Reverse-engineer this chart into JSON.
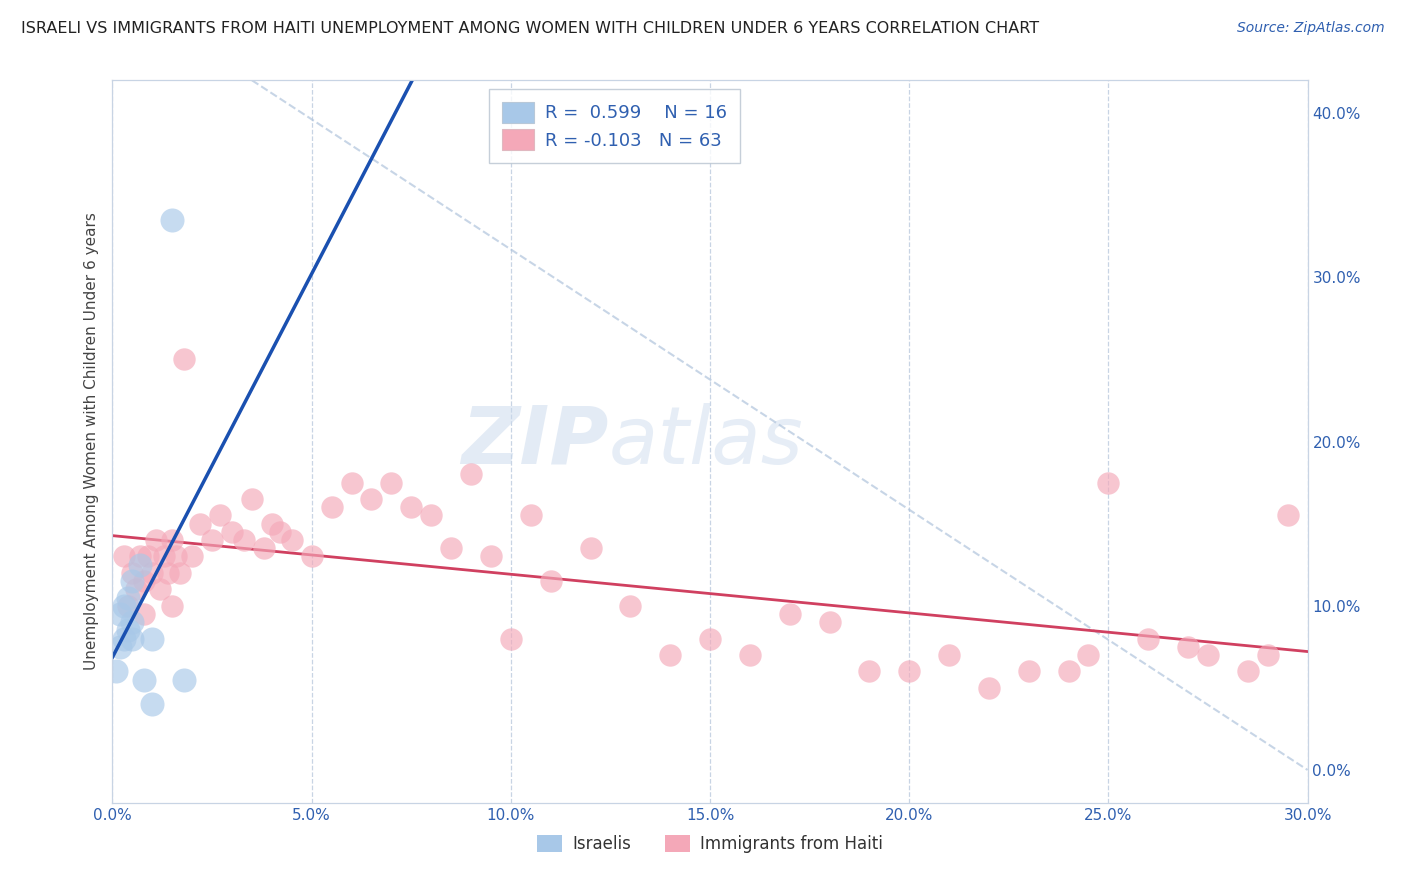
{
  "title": "ISRAELI VS IMMIGRANTS FROM HAITI UNEMPLOYMENT AMONG WOMEN WITH CHILDREN UNDER 6 YEARS CORRELATION CHART",
  "source": "Source: ZipAtlas.com",
  "ylabel": "Unemployment Among Women with Children Under 6 years",
  "label_israelis": "Israelis",
  "label_haiti": "Immigrants from Haiti",
  "xmin": 0.0,
  "xmax": 0.3,
  "ymin": -0.02,
  "ymax": 0.42,
  "r_israeli": 0.599,
  "n_israeli": 16,
  "r_haiti": -0.103,
  "n_haiti": 63,
  "color_israeli": "#a8c8e8",
  "color_haiti": "#f4a8b8",
  "color_line_israeli": "#1a50b0",
  "color_line_haiti": "#d04060",
  "color_accent": "#3060b0",
  "background_color": "#ffffff",
  "grid_color": "#c8d4e4",
  "israeli_x": [
    0.001,
    0.002,
    0.002,
    0.003,
    0.003,
    0.004,
    0.004,
    0.005,
    0.005,
    0.005,
    0.007,
    0.008,
    0.01,
    0.01,
    0.015,
    0.018
  ],
  "israeli_y": [
    0.06,
    0.075,
    0.095,
    0.08,
    0.1,
    0.085,
    0.105,
    0.08,
    0.09,
    0.115,
    0.125,
    0.055,
    0.04,
    0.08,
    0.335,
    0.055
  ],
  "haiti_x": [
    0.003,
    0.004,
    0.005,
    0.006,
    0.007,
    0.008,
    0.008,
    0.009,
    0.01,
    0.011,
    0.012,
    0.013,
    0.014,
    0.015,
    0.015,
    0.016,
    0.017,
    0.018,
    0.02,
    0.022,
    0.025,
    0.027,
    0.03,
    0.033,
    0.035,
    0.038,
    0.04,
    0.042,
    0.045,
    0.05,
    0.055,
    0.06,
    0.065,
    0.07,
    0.075,
    0.08,
    0.085,
    0.09,
    0.095,
    0.1,
    0.105,
    0.11,
    0.12,
    0.13,
    0.14,
    0.15,
    0.16,
    0.17,
    0.18,
    0.19,
    0.2,
    0.21,
    0.22,
    0.23,
    0.24,
    0.245,
    0.25,
    0.26,
    0.27,
    0.275,
    0.285,
    0.29,
    0.295
  ],
  "haiti_y": [
    0.13,
    0.1,
    0.12,
    0.11,
    0.13,
    0.095,
    0.115,
    0.13,
    0.12,
    0.14,
    0.11,
    0.13,
    0.12,
    0.1,
    0.14,
    0.13,
    0.12,
    0.25,
    0.13,
    0.15,
    0.14,
    0.155,
    0.145,
    0.14,
    0.165,
    0.135,
    0.15,
    0.145,
    0.14,
    0.13,
    0.16,
    0.175,
    0.165,
    0.175,
    0.16,
    0.155,
    0.135,
    0.18,
    0.13,
    0.08,
    0.155,
    0.115,
    0.135,
    0.1,
    0.07,
    0.08,
    0.07,
    0.095,
    0.09,
    0.06,
    0.06,
    0.07,
    0.05,
    0.06,
    0.06,
    0.07,
    0.175,
    0.08,
    0.075,
    0.07,
    0.06,
    0.07,
    0.155
  ],
  "ref_line_x": [
    0.035,
    0.3
  ],
  "ref_line_y": [
    0.42,
    0.0
  ]
}
